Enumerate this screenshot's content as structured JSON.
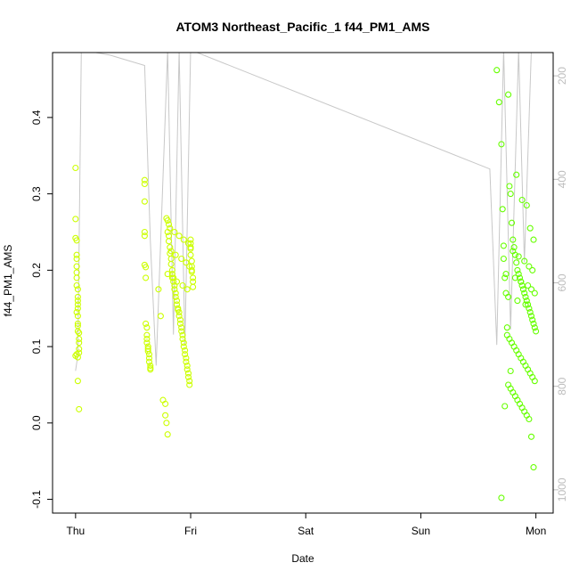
{
  "chart_data": {
    "type": "scatter",
    "title": "ATOM3 Northeast_Pacific_1 f44_PM1_AMS",
    "xlabel": "Date",
    "ylabel": "f44_PM1_AMS",
    "x_ticks": [
      "Thu",
      "Fri",
      "Sat",
      "Sun",
      "Mon"
    ],
    "x_tick_days": [
      0,
      1,
      2,
      3,
      4
    ],
    "xlim": [
      -0.2,
      4.15
    ],
    "ylim": [
      -0.118,
      0.485
    ],
    "y_ticks": [
      -0.1,
      0.0,
      0.1,
      0.2,
      0.3,
      0.4
    ],
    "y_ticks_labels": [
      "-0.1",
      "0.0",
      "0.1",
      "0.2",
      "0.3",
      "0.4"
    ],
    "right_axis": {
      "ticks": [
        200,
        400,
        600,
        800,
        1000
      ],
      "ticks_labels": [
        "200",
        "400",
        "600",
        "800",
        "1000"
      ],
      "lim": [
        1045,
        155
      ],
      "color": "#bdbdbd"
    },
    "line_series": {
      "color": "#c8c8c8",
      "x": [
        0.0,
        0.02,
        0.05,
        0.3,
        0.6,
        0.65,
        0.7,
        0.8,
        0.85,
        0.9,
        0.95,
        1.0,
        3.6,
        3.66,
        3.72,
        3.78,
        3.85,
        3.9,
        3.96
      ],
      "y": [
        770,
        740,
        150,
        160,
        180,
        520,
        760,
        150,
        700,
        150,
        720,
        150,
        380,
        720,
        150,
        690,
        150,
        560,
        150
      ]
    },
    "point_colors": {
      "early": "#ccff00",
      "late": "#66ff00"
    },
    "series": [
      {
        "x": [
          0.0,
          0.0,
          0.0,
          0.01,
          0.01,
          0.01,
          0.01,
          0.01,
          0.01,
          0.01,
          0.02,
          0.02,
          0.02,
          0.02,
          0.02,
          0.02,
          0.02,
          0.02,
          0.03,
          0.03,
          0.03,
          0.03,
          0.0,
          0.01,
          0.02,
          0.03,
          0.02,
          0.01,
          0.03,
          0.02,
          0.6,
          0.6,
          0.6,
          0.6,
          0.6,
          0.6,
          0.61,
          0.61,
          0.61,
          0.62,
          0.62,
          0.62,
          0.62,
          0.63,
          0.63,
          0.63,
          0.64,
          0.64,
          0.64,
          0.65,
          0.65,
          0.65,
          0.72,
          0.74,
          0.76,
          0.78,
          0.78,
          0.79,
          0.8,
          0.8,
          0.81,
          0.81,
          0.82,
          0.82,
          0.83,
          0.83,
          0.84,
          0.84,
          0.85,
          0.85,
          0.86,
          0.86,
          0.87,
          0.87,
          0.88,
          0.88,
          0.89,
          0.89,
          0.9,
          0.9,
          0.91,
          0.91,
          0.92,
          0.92,
          0.93,
          0.93,
          0.94,
          0.94,
          0.95,
          0.95,
          0.96,
          0.96,
          0.97,
          0.97,
          0.98,
          0.98,
          0.99,
          0.99,
          1.0,
          1.0,
          1.0,
          1.0,
          1.01,
          1.01,
          1.01,
          1.02,
          1.02,
          1.02,
          0.79,
          0.8,
          0.81,
          0.82,
          0.86,
          0.9,
          0.94,
          0.98,
          1.0,
          0.83,
          0.87,
          0.92,
          0.96,
          0.99,
          1.01,
          0.8,
          0.84,
          0.88,
          0.93,
          0.97
        ],
        "y": [
          0.334,
          0.267,
          0.242,
          0.239,
          0.22,
          0.215,
          0.205,
          0.197,
          0.19,
          0.18,
          0.175,
          0.165,
          0.16,
          0.155,
          0.15,
          0.14,
          0.13,
          0.12,
          0.11,
          0.105,
          0.097,
          0.092,
          0.088,
          0.09,
          0.055,
          0.018,
          0.127,
          0.145,
          0.118,
          0.086,
          0.318,
          0.313,
          0.29,
          0.25,
          0.245,
          0.207,
          0.204,
          0.19,
          0.13,
          0.125,
          0.115,
          0.11,
          0.105,
          0.1,
          0.097,
          0.094,
          0.09,
          0.085,
          0.08,
          0.075,
          0.072,
          0.07,
          0.175,
          0.14,
          0.03,
          0.025,
          0.01,
          0.0,
          -0.015,
          0.25,
          0.245,
          0.238,
          0.23,
          0.222,
          0.215,
          0.208,
          0.2,
          0.195,
          0.19,
          0.185,
          0.18,
          0.175,
          0.17,
          0.165,
          0.16,
          0.155,
          0.15,
          0.148,
          0.145,
          0.14,
          0.135,
          0.13,
          0.125,
          0.12,
          0.115,
          0.11,
          0.105,
          0.1,
          0.095,
          0.09,
          0.085,
          0.08,
          0.075,
          0.07,
          0.065,
          0.06,
          0.055,
          0.05,
          0.24,
          0.235,
          0.228,
          0.22,
          0.212,
          0.205,
          0.198,
          0.19,
          0.185,
          0.178,
          0.268,
          0.265,
          0.26,
          0.255,
          0.25,
          0.245,
          0.24,
          0.235,
          0.23,
          0.225,
          0.22,
          0.215,
          0.21,
          0.205,
          0.2,
          0.195,
          0.19,
          0.185,
          0.18,
          0.175
        ]
      },
      {
        "x": [
          3.66,
          3.68,
          3.7,
          3.71,
          3.72,
          3.73,
          3.74,
          3.75,
          3.76,
          3.77,
          3.78,
          3.79,
          3.8,
          3.81,
          3.82,
          3.83,
          3.84,
          3.85,
          3.86,
          3.87,
          3.88,
          3.89,
          3.9,
          3.91,
          3.92,
          3.93,
          3.94,
          3.95,
          3.96,
          3.97,
          3.98,
          3.99,
          4.0,
          3.75,
          3.77,
          3.79,
          3.81,
          3.83,
          3.85,
          3.87,
          3.89,
          3.91,
          3.93,
          3.95,
          3.97,
          3.99,
          3.76,
          3.78,
          3.8,
          3.82,
          3.84,
          3.86,
          3.88,
          3.9,
          3.92,
          3.94,
          3.96,
          3.98,
          3.7,
          3.73,
          3.78,
          3.83,
          3.88,
          3.92,
          3.95,
          3.98,
          3.72,
          3.8,
          3.85,
          3.9,
          3.94,
          3.97,
          3.74,
          3.82,
          3.87,
          3.93,
          3.96,
          3.99,
          3.76,
          3.84,
          3.91
        ],
        "y": [
          0.462,
          0.42,
          0.365,
          0.28,
          0.215,
          0.19,
          0.17,
          0.125,
          0.43,
          0.31,
          0.3,
          0.262,
          0.24,
          0.23,
          0.22,
          0.21,
          0.2,
          0.195,
          0.19,
          0.185,
          0.18,
          0.175,
          0.17,
          0.165,
          0.16,
          0.155,
          0.15,
          0.145,
          0.14,
          0.135,
          0.13,
          0.125,
          0.12,
          0.115,
          0.11,
          0.105,
          0.1,
          0.095,
          0.09,
          0.085,
          0.08,
          0.075,
          0.07,
          0.065,
          0.06,
          0.055,
          0.05,
          0.045,
          0.04,
          0.035,
          0.03,
          0.025,
          0.02,
          0.015,
          0.01,
          0.005,
          -0.018,
          -0.058,
          -0.098,
          0.022,
          0.068,
          0.325,
          0.292,
          0.285,
          0.255,
          0.24,
          0.232,
          0.225,
          0.218,
          0.212,
          0.205,
          0.2,
          0.195,
          0.19,
          0.185,
          0.18,
          0.175,
          0.17,
          0.165,
          0.16,
          0.155
        ]
      }
    ]
  }
}
